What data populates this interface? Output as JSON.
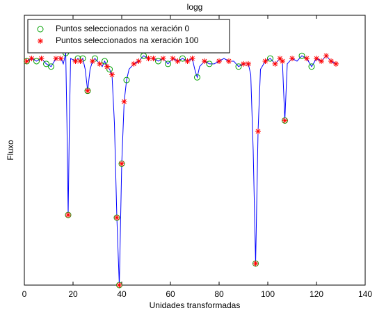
{
  "chart_data": {
    "type": "line",
    "title": "logg",
    "xlabel": "Unidades transformadas",
    "ylabel": "Fluxo",
    "xlim": [
      0,
      140
    ],
    "xticks": [
      0,
      20,
      40,
      60,
      80,
      100,
      120,
      140
    ],
    "ylim": [
      0,
      1
    ],
    "legend": "northwest",
    "series": [
      {
        "marker": "none",
        "color": "#0000ff",
        "x": [
          1,
          3,
          5,
          7,
          9,
          11,
          13,
          15,
          16,
          17,
          17.5,
          18,
          18.5,
          19,
          21,
          22,
          23,
          24,
          25,
          26,
          27,
          28,
          29,
          31,
          32,
          33,
          34,
          35,
          36,
          37,
          38,
          39,
          40,
          41,
          42,
          43,
          45,
          47,
          49,
          51,
          53,
          55,
          57,
          59,
          61,
          63,
          65,
          67,
          69,
          70,
          71,
          72,
          74,
          76,
          78,
          80,
          82,
          84,
          86,
          88,
          90,
          92,
          93,
          94,
          95,
          96,
          97,
          99,
          101,
          103,
          105,
          106,
          107,
          108,
          110,
          112,
          114,
          116,
          118,
          120,
          122,
          124,
          126,
          128
        ],
        "values": [
          0.83,
          0.84,
          0.83,
          0.84,
          0.82,
          0.81,
          0.84,
          0.84,
          0.82,
          0.86,
          0.6,
          0.26,
          0.6,
          0.84,
          0.83,
          0.84,
          0.83,
          0.84,
          0.8,
          0.72,
          0.8,
          0.83,
          0.84,
          0.82,
          0.81,
          0.83,
          0.81,
          0.8,
          0.78,
          0.6,
          0.25,
          0.0,
          0.45,
          0.68,
          0.76,
          0.8,
          0.82,
          0.83,
          0.85,
          0.84,
          0.84,
          0.83,
          0.84,
          0.82,
          0.84,
          0.83,
          0.84,
          0.83,
          0.84,
          0.8,
          0.77,
          0.81,
          0.83,
          0.82,
          0.82,
          0.83,
          0.84,
          0.83,
          0.83,
          0.81,
          0.82,
          0.82,
          0.78,
          0.5,
          0.08,
          0.57,
          0.8,
          0.83,
          0.84,
          0.82,
          0.84,
          0.83,
          0.61,
          0.82,
          0.84,
          0.83,
          0.85,
          0.84,
          0.81,
          0.84,
          0.83,
          0.85,
          0.83,
          0.82
        ]
      },
      {
        "name": "Puntos seleccionados na xeración 0",
        "marker": "circle",
        "color": "#00a000",
        "x": [
          1,
          5,
          9,
          11,
          17,
          18,
          22,
          24,
          26,
          29,
          33,
          35,
          38,
          39,
          40,
          42,
          49,
          55,
          59,
          65,
          71,
          76,
          88,
          95,
          101,
          107,
          114,
          118
        ],
        "values": [
          0.83,
          0.83,
          0.82,
          0.81,
          0.86,
          0.26,
          0.84,
          0.84,
          0.72,
          0.84,
          0.83,
          0.8,
          0.25,
          0.0,
          0.45,
          0.76,
          0.85,
          0.83,
          0.82,
          0.84,
          0.77,
          0.82,
          0.81,
          0.08,
          0.84,
          0.61,
          0.85,
          0.81
        ]
      },
      {
        "name": "Puntos seleccionados na xeración 100",
        "marker": "star",
        "color": "#ff0000",
        "x": [
          1,
          3,
          7,
          13,
          15,
          18,
          21,
          23,
          26,
          28,
          31,
          34,
          36,
          38,
          39,
          40,
          41,
          45,
          47,
          51,
          53,
          57,
          61,
          63,
          67,
          69,
          74,
          80,
          84,
          90,
          92,
          95,
          96,
          99,
          103,
          105,
          106,
          107,
          110,
          116,
          120,
          122,
          124,
          126,
          128
        ],
        "values": [
          0.83,
          0.84,
          0.84,
          0.84,
          0.84,
          0.26,
          0.83,
          0.83,
          0.72,
          0.83,
          0.82,
          0.81,
          0.78,
          0.25,
          0.0,
          0.45,
          0.68,
          0.82,
          0.83,
          0.84,
          0.84,
          0.84,
          0.84,
          0.83,
          0.83,
          0.84,
          0.83,
          0.83,
          0.83,
          0.82,
          0.82,
          0.08,
          0.57,
          0.83,
          0.82,
          0.84,
          0.83,
          0.61,
          0.84,
          0.84,
          0.84,
          0.83,
          0.85,
          0.83,
          0.82
        ]
      }
    ]
  }
}
